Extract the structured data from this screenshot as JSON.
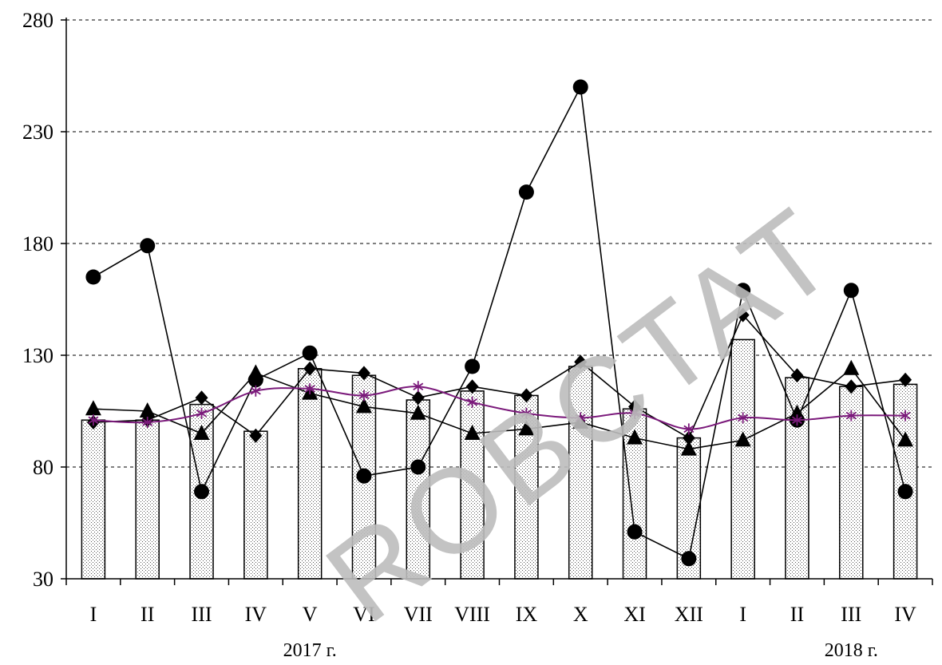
{
  "chart_data": {
    "type": "bar",
    "ylim": [
      30,
      280
    ],
    "yticks": [
      30,
      80,
      130,
      180,
      230,
      280
    ],
    "grid": true,
    "categories": [
      "I",
      "II",
      "III",
      "IV",
      "V",
      "VI",
      "VII",
      "VIII",
      "IX",
      "X",
      "XI",
      "XII",
      "I",
      "II",
      "III",
      "IV"
    ],
    "year_labels": [
      {
        "label": "2017 г.",
        "category_index": 4
      },
      {
        "label": "2018 г.",
        "category_index": 14
      }
    ],
    "bars": [
      101,
      101,
      108,
      96,
      124,
      121,
      110,
      114,
      112,
      125,
      106,
      93,
      137,
      120,
      116,
      117
    ],
    "series": [
      {
        "marker": "circle",
        "color": "#000000",
        "values": [
          165,
          179,
          69,
          119,
          131,
          76,
          80,
          125,
          203,
          250,
          51,
          39,
          159,
          101,
          159,
          69
        ]
      },
      {
        "marker": "diamond",
        "color": "#000000",
        "values": [
          100,
          101,
          111,
          94,
          124,
          122,
          111,
          116,
          112,
          127,
          107,
          93,
          148,
          121,
          116,
          119
        ]
      },
      {
        "marker": "triangle",
        "color": "#000000",
        "values": [
          106,
          105,
          95,
          122,
          113,
          107,
          104,
          95,
          97,
          100,
          93,
          88,
          92,
          104,
          124,
          92
        ]
      },
      {
        "marker": "asterisk",
        "color": "#7b1a7b",
        "values": [
          101,
          100,
          104,
          114,
          115,
          112,
          116,
          109,
          104,
          102,
          104,
          97,
          102,
          101,
          103,
          103
        ]
      }
    ]
  },
  "watermark": {
    "text": "ROBCTAT",
    "color": "#bdbdbd"
  }
}
